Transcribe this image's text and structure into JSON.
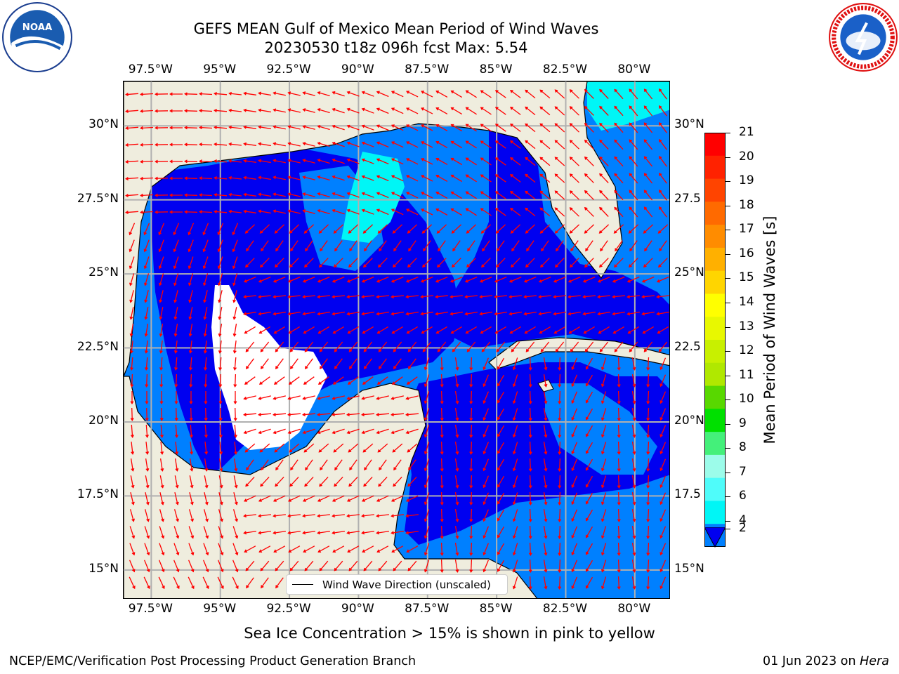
{
  "title": {
    "line1": "GEFS MEAN Gulf of Mexico Mean Period of Wind Waves",
    "line2": "20230530 t18z 096h fcst   Max: 5.54"
  },
  "logos": {
    "left": "NOAA",
    "right": "NATIONAL WEATHER SERVICE"
  },
  "lon_ticks": [
    "97.5°W",
    "95°W",
    "92.5°W",
    "90°W",
    "87.5°W",
    "85°W",
    "82.5°W",
    "80°W"
  ],
  "lat_ticks_left": [
    "30°N",
    "27.5°N",
    "25°N",
    "22.5°N",
    "20°N",
    "17.5°N",
    "15°N"
  ],
  "lat_ticks_right": [
    "30°N",
    "27.5",
    "25°N",
    "22.5",
    "20°N",
    "17.5",
    "15°N"
  ],
  "colorbar": {
    "title": "Mean Period of Wind Waves [s]",
    "labels": [
      "21",
      "20",
      "19",
      "18",
      "17",
      "16",
      "15",
      "14",
      "13",
      "12",
      "11",
      "10",
      "9",
      "8",
      "7",
      "6",
      "4",
      "2"
    ],
    "colors": [
      "#ff0000",
      "#ff2200",
      "#ff4400",
      "#ff6a00",
      "#ff8c00",
      "#ffb000",
      "#ffd500",
      "#ffff00",
      "#e8f800",
      "#c8f000",
      "#b0e800",
      "#58d800",
      "#00e000",
      "#44f07a",
      "#9cfcea",
      "#4ffcfa",
      "#00f6f6",
      "#0080ff"
    ],
    "extend_color": "#0000f0"
  },
  "map": {
    "extent": {
      "lon_min": -98.5,
      "lon_max": -78.7,
      "lat_min": 14.0,
      "lat_max": 31.5
    },
    "colors": {
      "land": "#efedde",
      "ocean_dark": "#0000f0",
      "ocean_mid": "#0080ff",
      "ocean_light": "#00f6f6",
      "no_data": "#ffffff",
      "arrow": "#ff0000",
      "grid": "#b0b0b0"
    }
  },
  "legend": {
    "label": "Wind Wave Direction (unscaled)"
  },
  "note": "Sea Ice Concentration > 15% is shown in pink to yellow",
  "footer": {
    "left": "NCEP/EMC/Verification Post Processing Product Generation Branch",
    "right_prefix": "01 Jun 2023 on ",
    "right_host": "Hera"
  }
}
